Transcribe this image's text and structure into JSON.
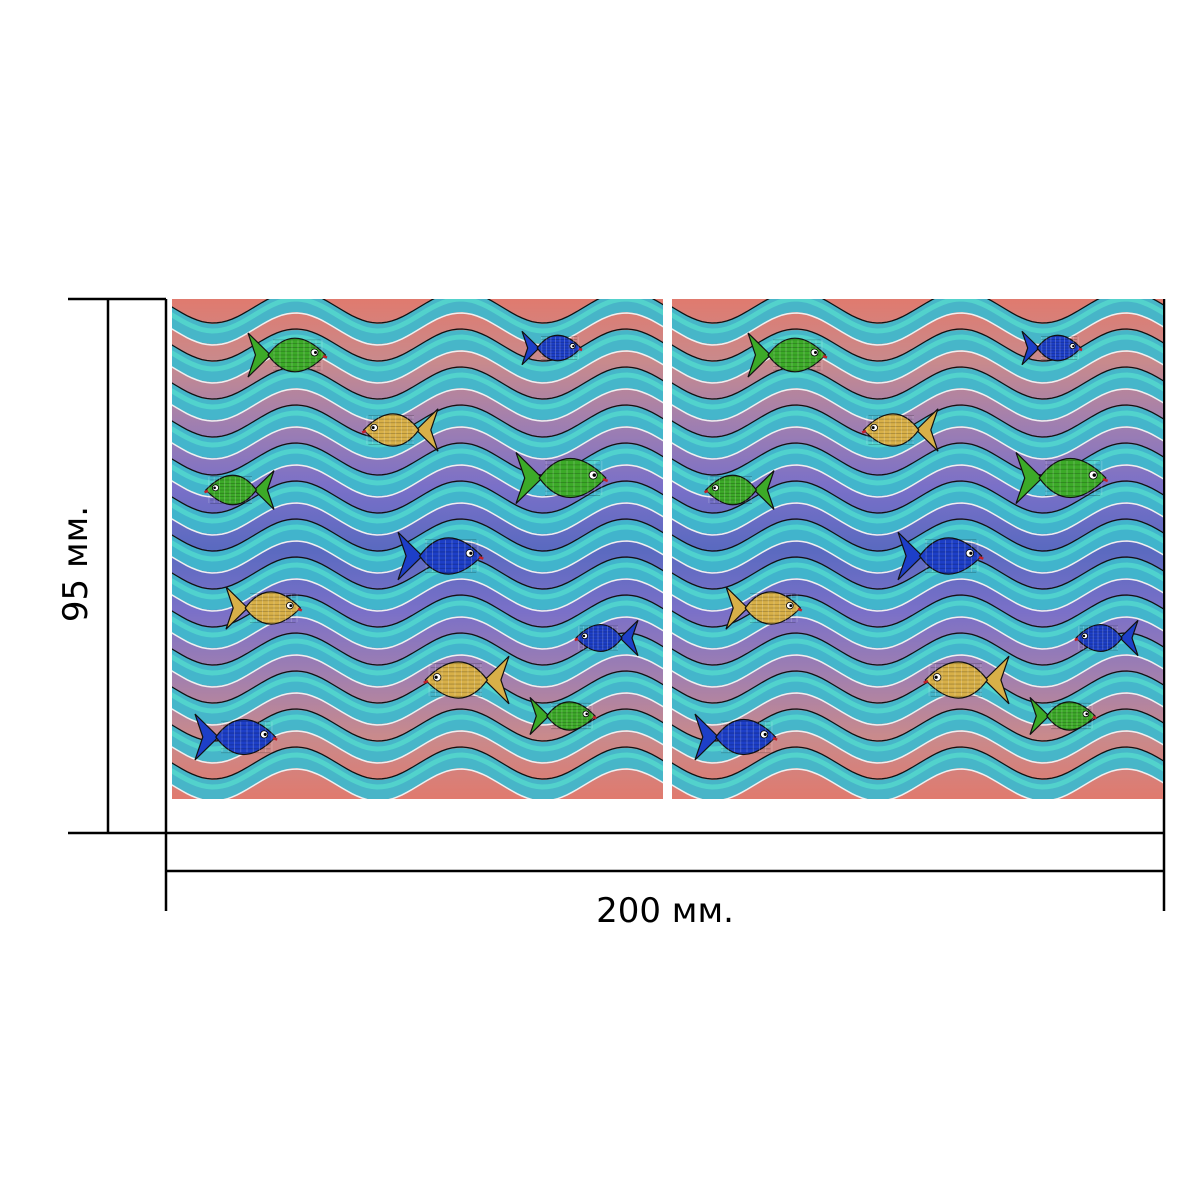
{
  "dimensions": {
    "width_label": "200 мм.",
    "height_label": "95 мм."
  },
  "panels": {
    "count": 2
  },
  "palette": {
    "band_colors": [
      "#e07a6e",
      "#c98a8c",
      "#a07fb0",
      "#7a70c8",
      "#5a6ac0",
      "#7a70c8",
      "#a07fb0",
      "#c98a8c",
      "#e07a6e"
    ],
    "wave_ribbon": "#3fb8cc",
    "wave_ribbon_highlight": "#5ef0d0",
    "fish_green": "#3caa28",
    "fish_blue": "#1d3fc8",
    "fish_gold": "#d8b048",
    "outline": "#111111"
  },
  "fish": [
    {
      "kind": "green",
      "dir": "right"
    },
    {
      "kind": "blue",
      "dir": "right"
    },
    {
      "kind": "gold",
      "dir": "left"
    },
    {
      "kind": "green",
      "dir": "right"
    },
    {
      "kind": "green",
      "dir": "left"
    },
    {
      "kind": "blue",
      "dir": "right"
    },
    {
      "kind": "gold",
      "dir": "right"
    },
    {
      "kind": "blue",
      "dir": "left"
    },
    {
      "kind": "gold",
      "dir": "left"
    },
    {
      "kind": "green",
      "dir": "right"
    },
    {
      "kind": "blue",
      "dir": "right"
    }
  ]
}
